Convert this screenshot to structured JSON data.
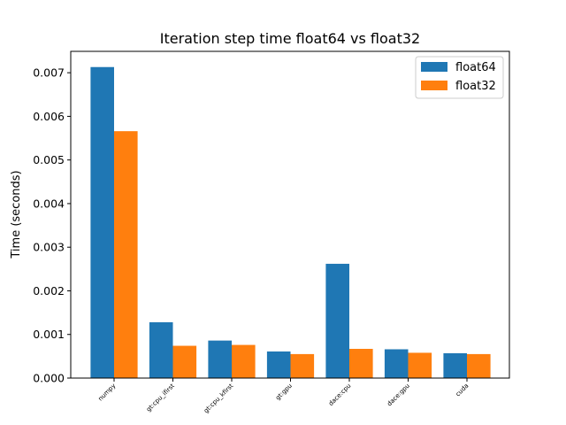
{
  "chart_data": {
    "type": "bar",
    "title": "Iteration step time float64 vs float32",
    "xlabel": "",
    "ylabel": "Time (seconds)",
    "categories": [
      "numpy",
      "gt:cpu_ifirst",
      "gt:cpu_kfirst",
      "gt:gpu",
      "dace:cpu",
      "dace:gpu",
      "cuda"
    ],
    "series": [
      {
        "name": "float64",
        "color": "#1f77b4",
        "values": [
          0.00713,
          0.00128,
          0.00086,
          0.00061,
          0.00262,
          0.00066,
          0.00057
        ]
      },
      {
        "name": "float32",
        "color": "#ff7f0e",
        "values": [
          0.00566,
          0.00074,
          0.00076,
          0.00055,
          0.00067,
          0.00058,
          0.00055
        ]
      }
    ],
    "ylim": [
      0,
      0.00749
    ],
    "yticks": [
      "0.000",
      "0.001",
      "0.002",
      "0.003",
      "0.004",
      "0.005",
      "0.006",
      "0.007"
    ],
    "legend_position": "top-right",
    "grid": false
  }
}
